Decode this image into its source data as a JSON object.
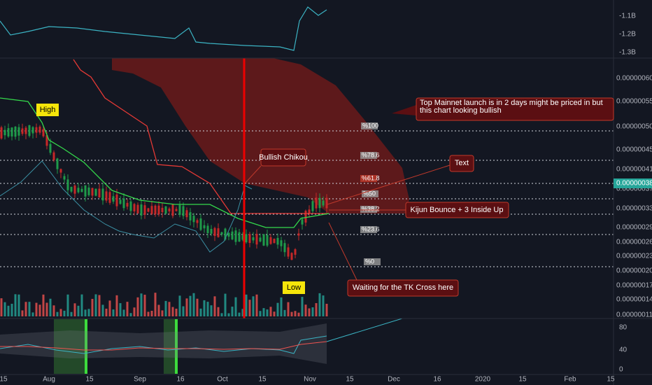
{
  "top_axis": {
    "ticks": [
      "-1.1B",
      "-1.2B",
      "-1.3B"
    ]
  },
  "price_axis": {
    "ticks": [
      "0.00000060",
      "0.00000055",
      "0.00000050",
      "0.00000045",
      "0.00000041",
      "0.00000037",
      "0.00000033",
      "0.00000029",
      "0.00000026",
      "0.00000023",
      "0.00000020",
      "0.00000017",
      "0.00000014",
      "0.00000011"
    ],
    "current": "0.00000038"
  },
  "indicator_axis": {
    "ticks": [
      "80",
      "40",
      "0"
    ]
  },
  "time_axis": {
    "ticks": [
      "15",
      "Aug",
      "15",
      "Sep",
      "16",
      "Oct",
      "15",
      "Nov",
      "15",
      "Dec",
      "16",
      "2020",
      "15",
      "Feb",
      "15"
    ]
  },
  "fib_levels": [
    "%100",
    "%78.6",
    "%61.8",
    "%50",
    "%38.2",
    "%23.6",
    "%0"
  ],
  "annotations": {
    "high": "High",
    "low": "Low",
    "chikou": "Bullish Chikou",
    "mainnet": "Top Mainnet launch is in 2 days might be priced in but this chart looking bullish",
    "text": "Text",
    "kijun": "Kijun Bounce + 3 Inside Up",
    "tk_cross": "Waiting for the TK Cross here"
  }
}
